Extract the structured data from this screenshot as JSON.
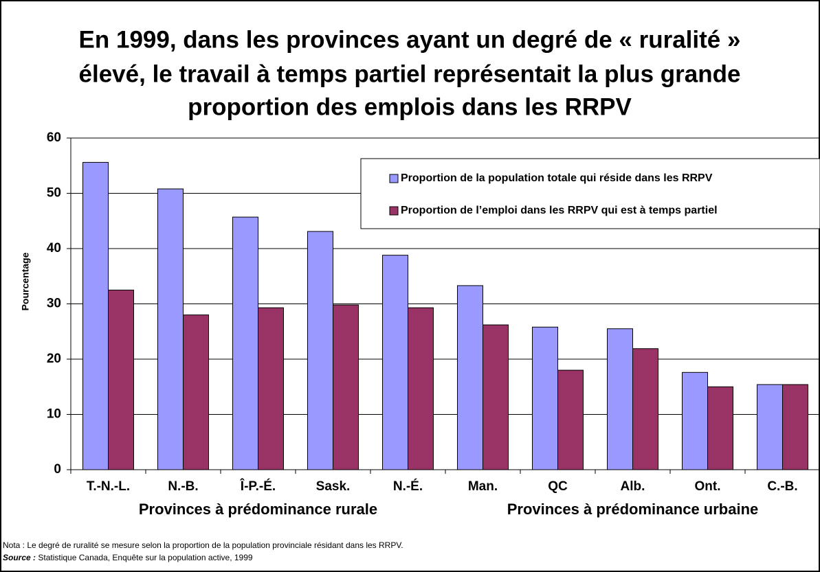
{
  "chart_data": {
    "type": "bar",
    "title": "En 1999, dans les provinces ayant un degré de « ruralité » élevé, le travail à temps partiel représentait la plus grande proportion des emplois dans les RRPV",
    "title_lines": [
      "En 1999, dans les provinces ayant un degré de « ruralité »",
      "élevé, le travail à temps partiel représentait la plus grande",
      "proportion des emplois dans les RRPV"
    ],
    "y_label": "Pourcentage",
    "categories": [
      "T.-N.-L.",
      "N.-B.",
      "Î-P.-É.",
      "Sask.",
      "N.-É.",
      "Man.",
      "QC",
      "Alb.",
      "Ont.",
      "C.-B."
    ],
    "category_groups": [
      {
        "label": "Provinces à prédominance rurale",
        "count": 5
      },
      {
        "label": "Provinces à prédominance urbaine",
        "count": 5
      }
    ],
    "series": [
      {
        "name": "Proportion de la population totale qui réside dans les RRPV",
        "color": "#9999ff",
        "values": [
          55.6,
          50.8,
          45.7,
          43.1,
          38.8,
          33.3,
          25.8,
          25.5,
          17.6,
          15.4
        ]
      },
      {
        "name": "Proportion de l’emploi dans les RRPV qui est à temps partiel",
        "color": "#993366",
        "values": [
          32.5,
          28.0,
          29.3,
          29.8,
          29.3,
          26.2,
          18.0,
          21.9,
          15.0,
          15.4
        ]
      }
    ],
    "ylim": [
      0,
      60
    ],
    "yticks": [
      0,
      10,
      20,
      30,
      40,
      50,
      60
    ],
    "grid": true,
    "legend": "upper right",
    "note": "Nota : Le degré de ruralité se mesure selon la proportion de la population provinciale résidant dans les RRPV.",
    "source_label": "Source :",
    "source": "Statistique Canada, Enquête sur la population active, 1999"
  }
}
